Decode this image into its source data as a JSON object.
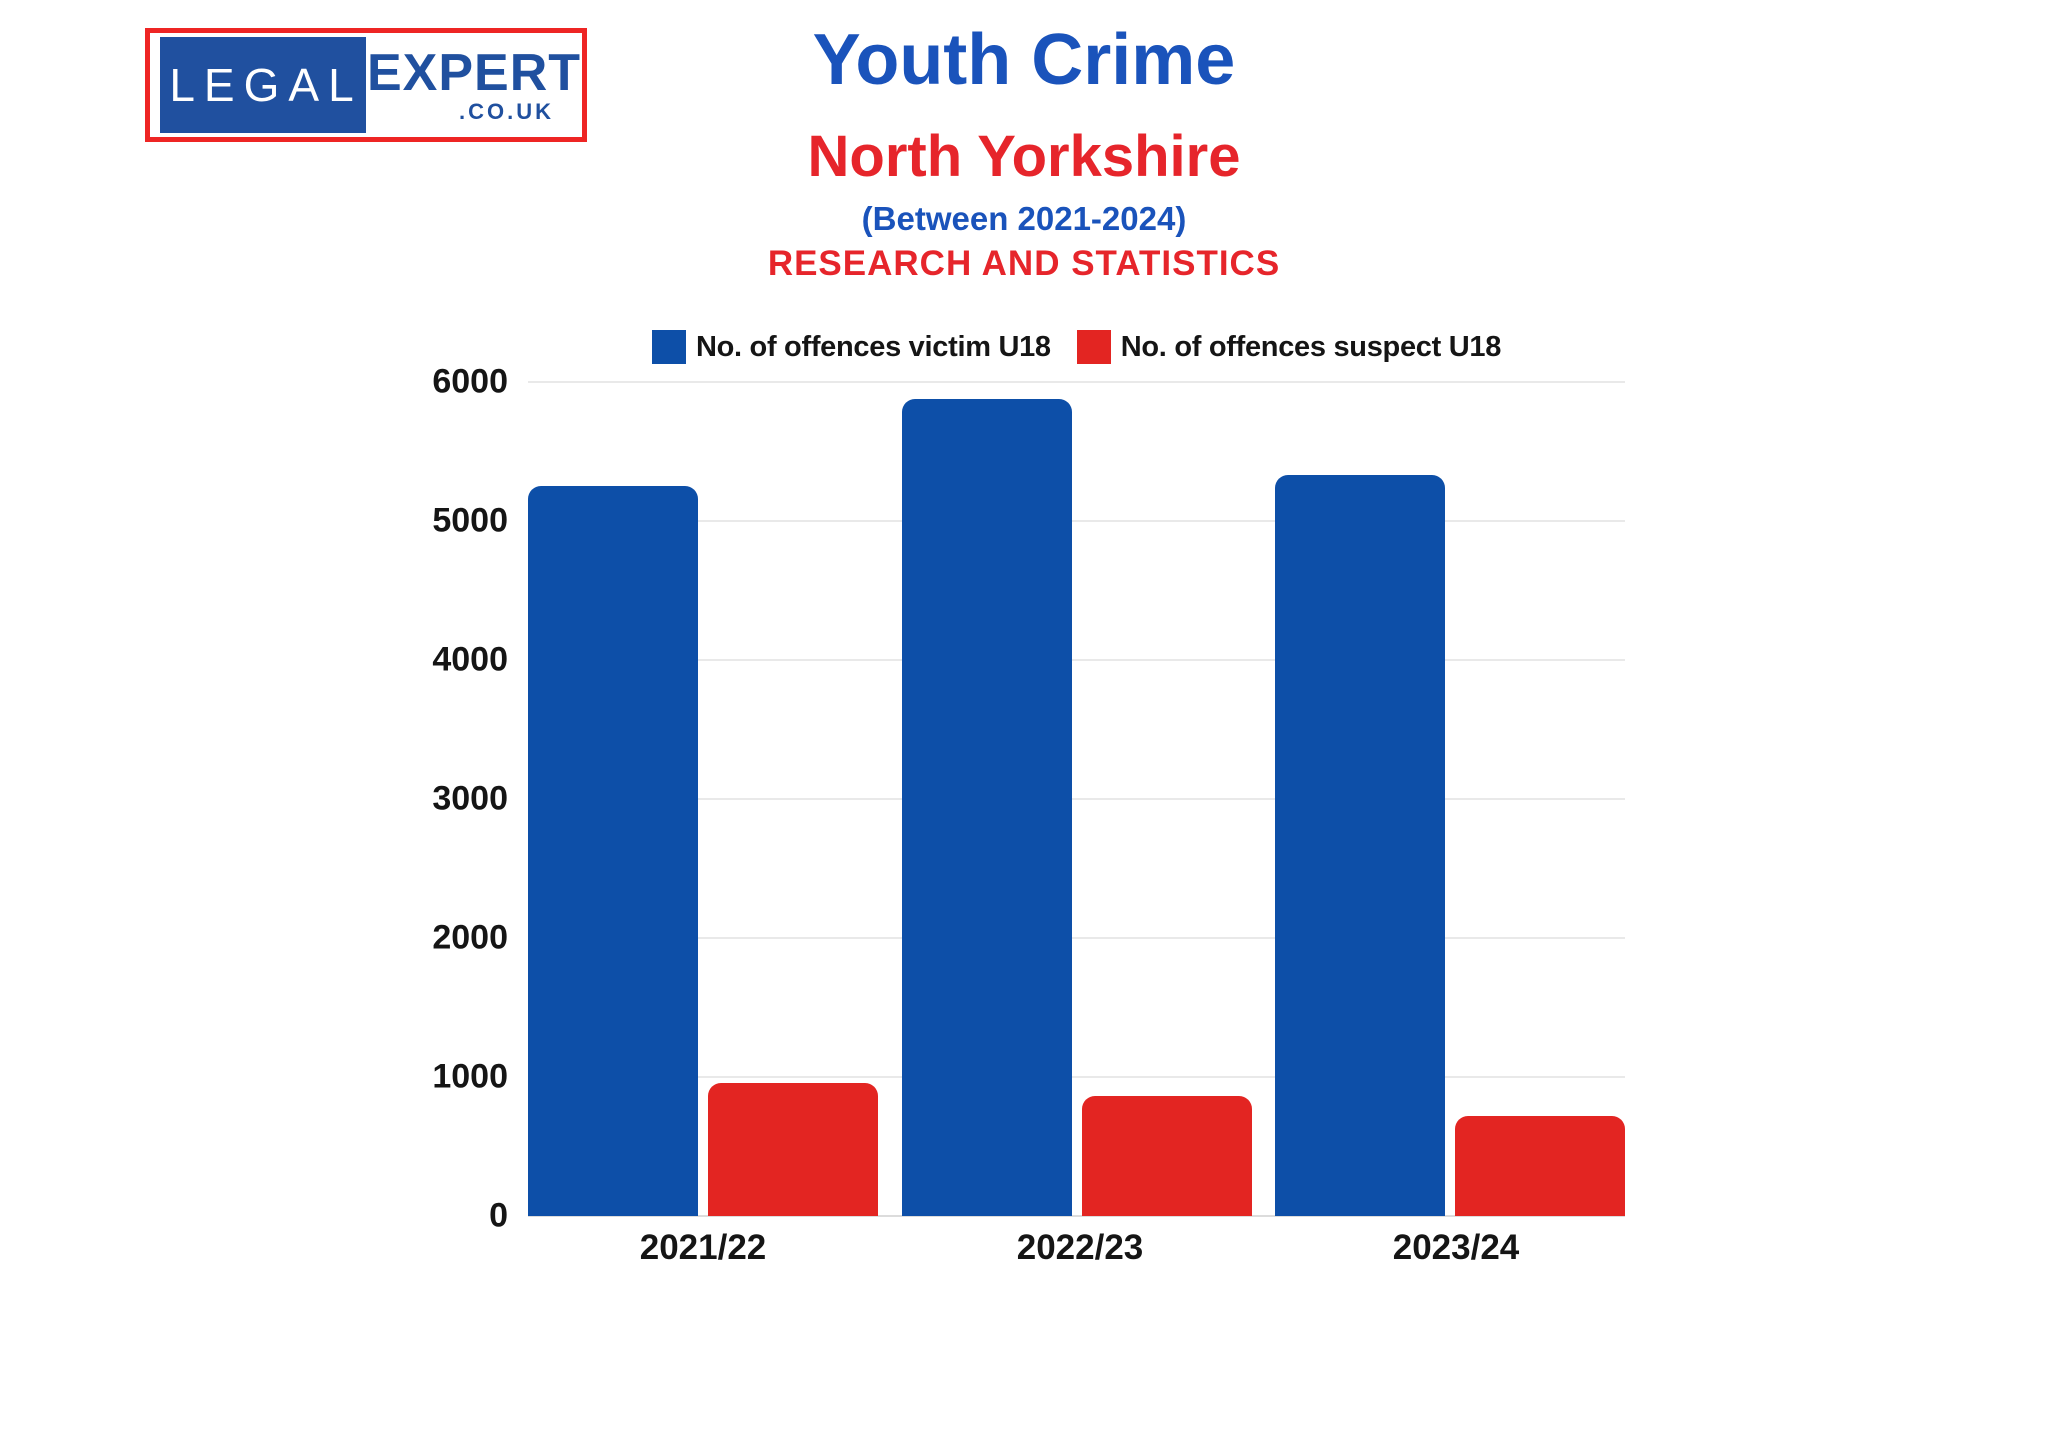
{
  "logo": {
    "word1": "LEGAL",
    "word2": "EXPERT",
    "domain": ".CO.UK"
  },
  "header": {
    "title": "Youth Crime",
    "subtitle": "North Yorkshire",
    "period": "(Between 2021-2024)",
    "tagline": "RESEARCH AND STATISTICS"
  },
  "chart_data": {
    "type": "bar",
    "title": "Youth Crime",
    "subtitle": "North Yorkshire (Between 2021-2024)",
    "categories": [
      "2021/22",
      "2022/23",
      "2023/24"
    ],
    "series": [
      {
        "name": "No. of offences victim U18",
        "color": "#0d4fa8",
        "values": [
          5250,
          5880,
          5330
        ]
      },
      {
        "name": "No. of offences suspect U18",
        "color": "#e32522",
        "values": [
          960,
          860,
          720
        ]
      }
    ],
    "xlabel": "",
    "ylabel": "",
    "ylim": [
      0,
      6000
    ],
    "yticks": [
      "6000",
      "5000",
      "4000",
      "3000",
      "2000",
      "1000",
      "0"
    ],
    "grid": true,
    "legend_position": "top"
  },
  "colors": {
    "logo-red": "#ee2524",
    "logo-blue": "#20509f",
    "title-blue": "#1a53bb",
    "title-red": "#e6252b",
    "bar-blue": "#0d4fa8",
    "bar-red": "#e32522",
    "grid": "#e9e9e9",
    "grid-dark": "#dcdcdc"
  }
}
